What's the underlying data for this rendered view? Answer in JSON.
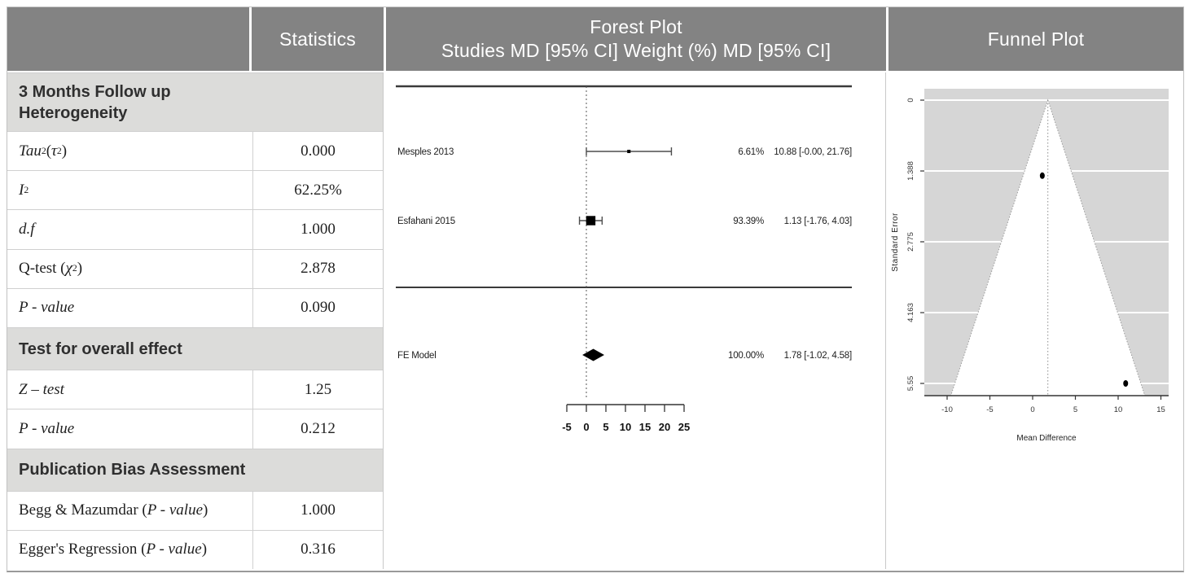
{
  "header": {
    "statistics": "Statistics",
    "forest_title": "Forest Plot",
    "forest_subtitle": "Studies MD [95% CI] Weight (%) MD [95% CI]",
    "funnel_title": "Funnel Plot"
  },
  "colors": {
    "header_bg": "#838383",
    "section_band_bg": "#dcdcda",
    "funnel_plot_bg": "#d6d6d6",
    "grid_border": "#c9c9c9",
    "ink": "#222222"
  },
  "stats_table": {
    "sections": [
      {
        "title": "3 Months Follow up\nHeterogeneity",
        "rows": [
          {
            "label_html": "<i>Tau</i><sup>2</sup> (<i>τ</i><sup>2</sup>)",
            "value": "0.000"
          },
          {
            "label_html": "<i>I</i><sup>2</sup>",
            "value": "62.25%"
          },
          {
            "label_html": "<i>d.f</i>",
            "value": "1.000"
          },
          {
            "label_html": "Q-test (<i>χ</i><sup>2</sup>)",
            "value": "2.878"
          },
          {
            "label_html": "<i>P - value</i>",
            "value": "0.090"
          }
        ]
      },
      {
        "title": "Test for overall effect",
        "rows": [
          {
            "label_html": "<i>Z – test</i>",
            "value": "1.25"
          },
          {
            "label_html": "<i>P - value</i>",
            "value": "0.212"
          }
        ]
      },
      {
        "title": "Publication Bias Assessment",
        "rows": [
          {
            "label_html": "Begg &amp; Mazumdar (<i>P - value</i>)",
            "value": "1.000"
          },
          {
            "label_html": "Egger's Regression (<i>P - value</i>)",
            "value": "0.316"
          }
        ]
      }
    ]
  },
  "chart_data": [
    {
      "type": "forest",
      "title": "Forest Plot",
      "columns": "Studies MD [95% CI] Weight (%) MD [95% CI]",
      "x_ticks": [
        -5,
        0,
        5,
        10,
        15,
        20,
        25
      ],
      "ref_line": 0,
      "studies": [
        {
          "name": "Mesples 2013",
          "md": 10.88,
          "ci_low": 0.0,
          "ci_high": 21.76,
          "weight_pct": 6.61,
          "weight_label": "6.61%",
          "ci_label": "10.88 [-0.00, 21.76]"
        },
        {
          "name": "Esfahani 2015",
          "md": 1.13,
          "ci_low": -1.76,
          "ci_high": 4.03,
          "weight_pct": 93.39,
          "weight_label": "93.39%",
          "ci_label": "1.13 [-1.76, 4.03]"
        }
      ],
      "summary": {
        "name": "FE Model",
        "md": 1.78,
        "ci_low": -1.02,
        "ci_high": 4.58,
        "weight_pct": 100.0,
        "weight_label": "100.00%",
        "ci_label": "1.78 [-1.02, 4.58]"
      }
    },
    {
      "type": "scatter",
      "title": "Funnel Plot",
      "xlabel": "Mean Difference",
      "ylabel": "Standard Error",
      "x_ticks": [
        -10,
        -5,
        0,
        5,
        10,
        15
      ],
      "y_ticks": [
        0,
        1.388,
        2.775,
        4.163,
        5.55
      ],
      "y_tick_labels": [
        "0",
        "1.388",
        "2.775",
        "4.163",
        "5.55"
      ],
      "xlim": [
        -12.2,
        15.9
      ],
      "se_max_shown": 5.79,
      "center": 1.78,
      "pseudo_ci_z": 1.96,
      "points": [
        {
          "x": 10.88,
          "se": 5.55
        },
        {
          "x": 1.13,
          "se": 1.48
        }
      ]
    }
  ]
}
